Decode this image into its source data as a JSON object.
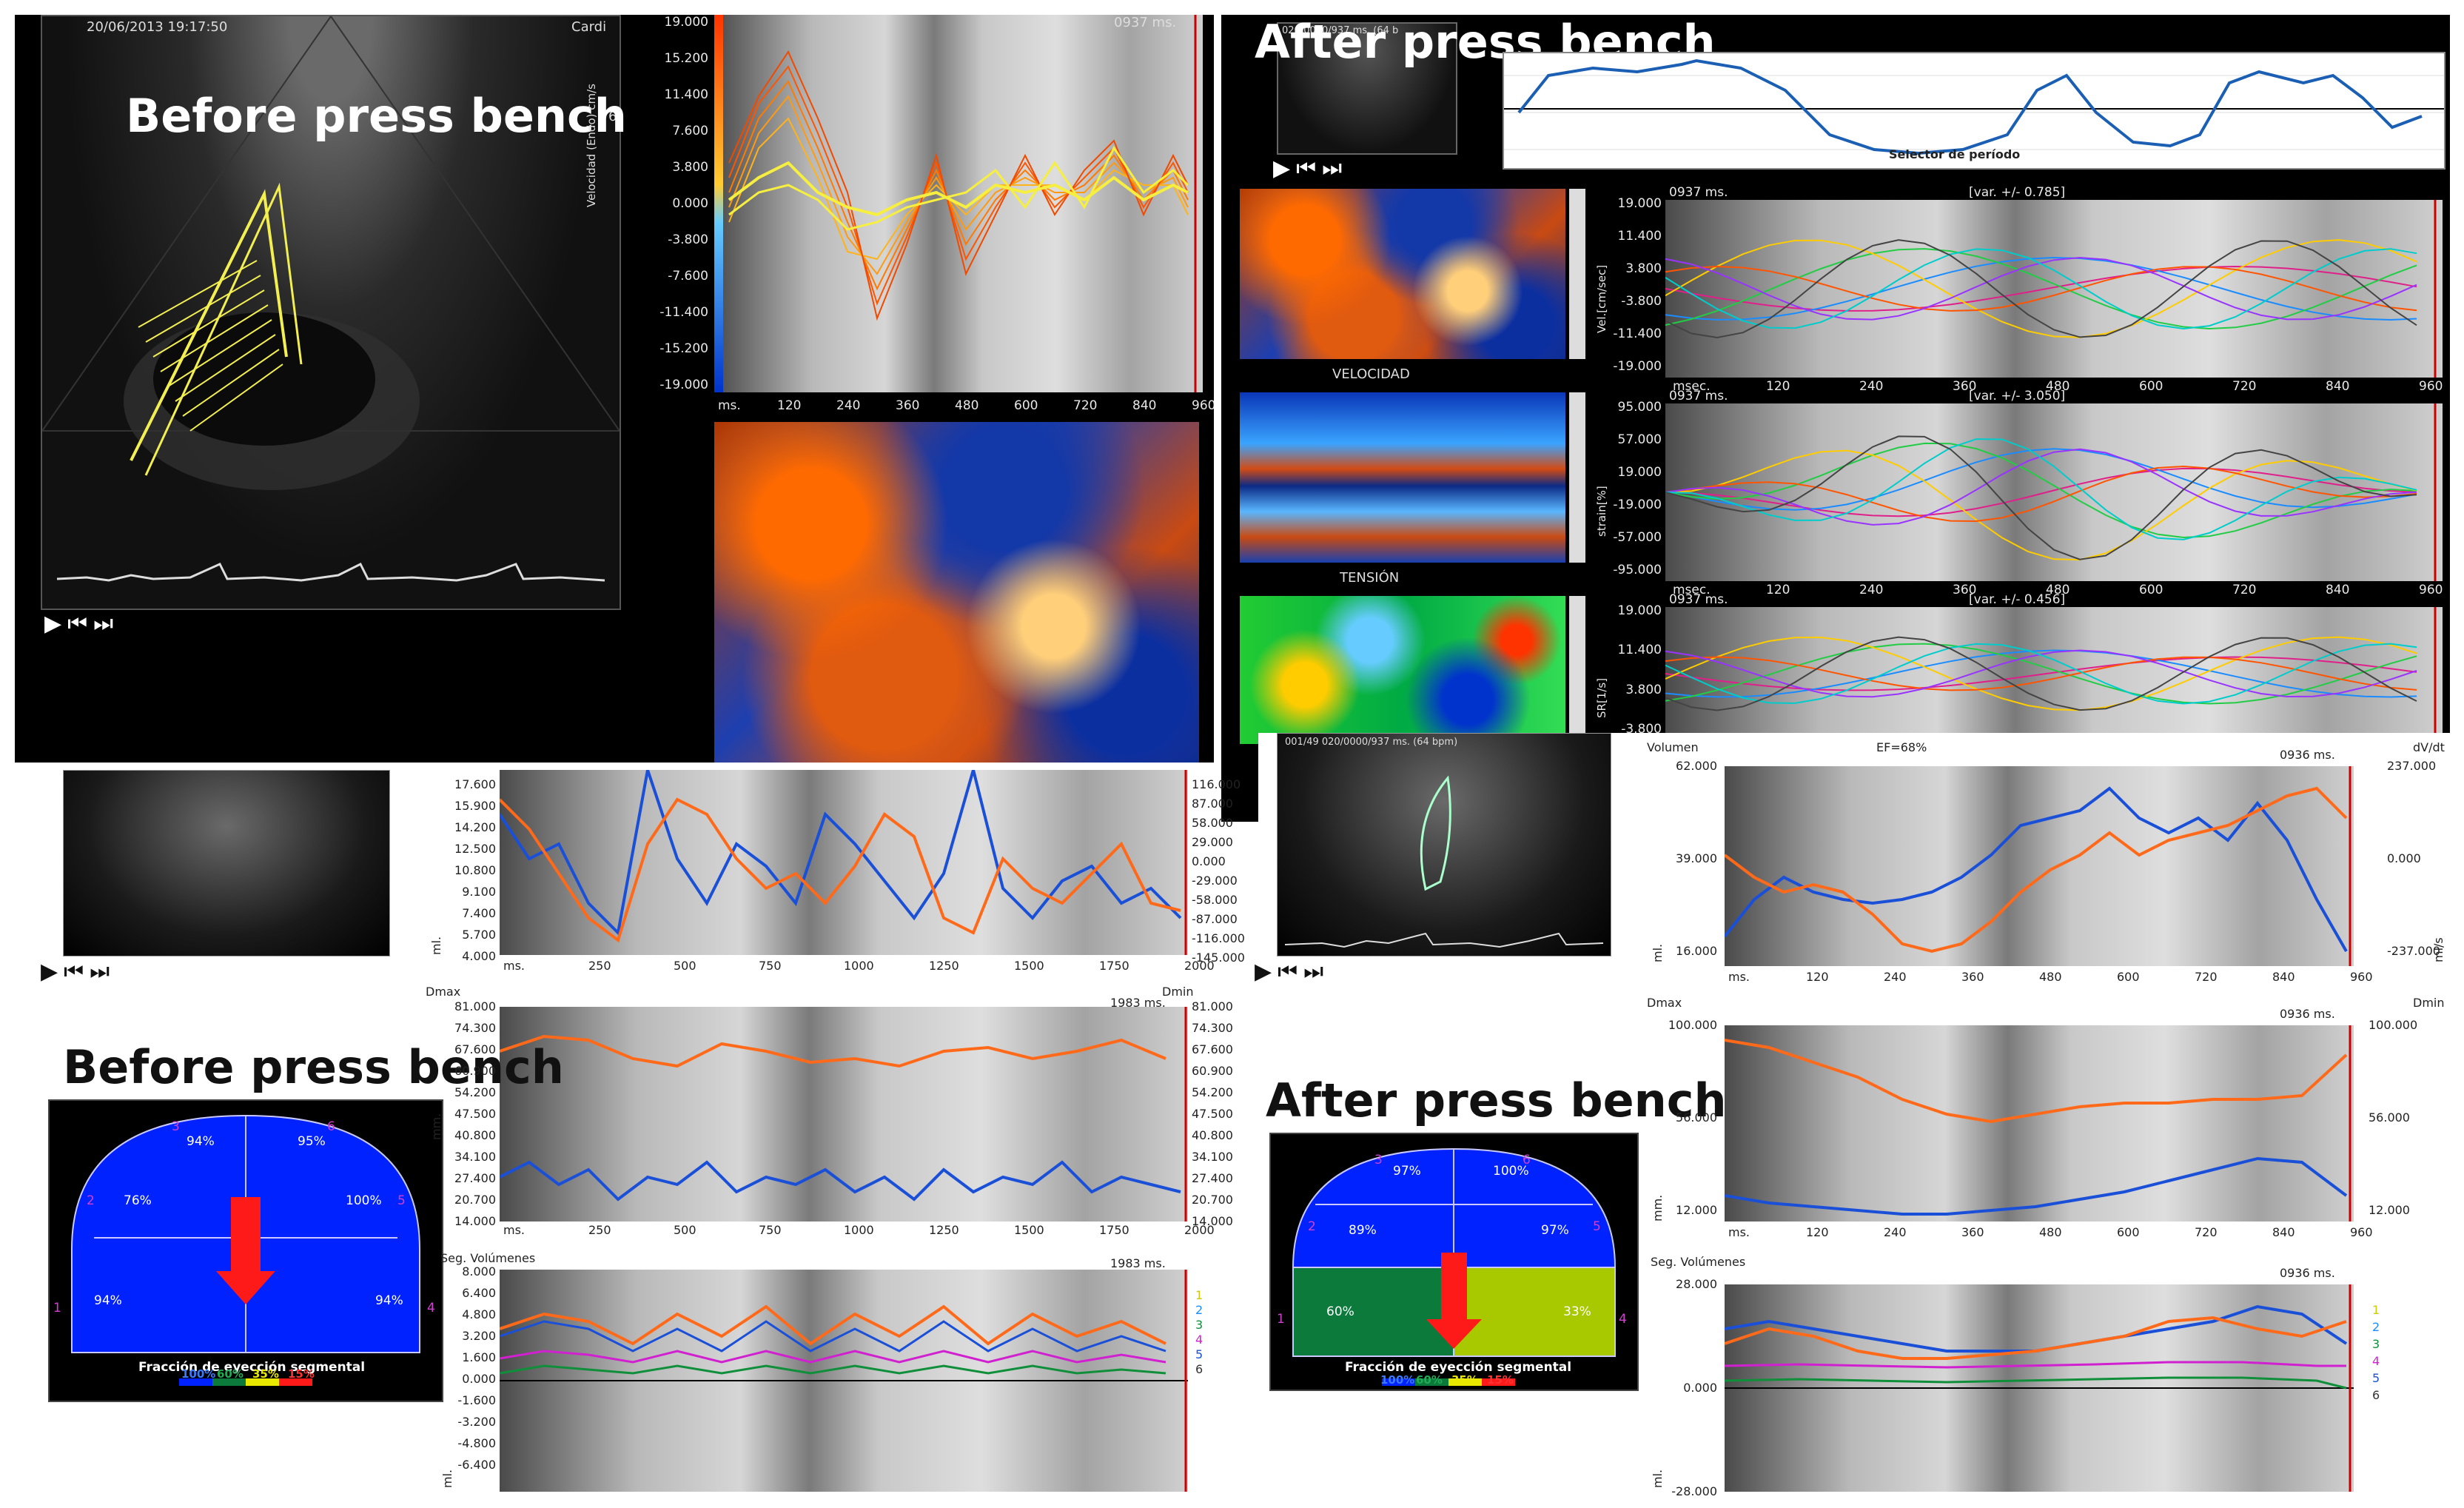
{
  "titles": {
    "before_top": "Before press bench",
    "after_top": "After press bench",
    "before_bottom": "Before press bench",
    "after_bottom": "After press bench"
  },
  "top_left": {
    "timestamp": "20/06/2013 19:17:50",
    "cardio": "Cardi",
    "side_mark": "6",
    "velocity_plot": {
      "header": "0937 ms.",
      "ylabel": "Velocidad (Endo) cm/s",
      "yticks": [
        "19.000",
        "15.200",
        "11.400",
        "7.600",
        "3.800",
        "0.000",
        "-3.800",
        "-7.600",
        "-11.400",
        "-15.200",
        "-19.000"
      ],
      "xticks": [
        "ms.",
        "120",
        "240",
        "360",
        "480",
        "600",
        "720",
        "840",
        "960"
      ]
    }
  },
  "top_right": {
    "thumb_header": "020/0000/937 ms. (64 b",
    "selector_label": "Selector de período",
    "map_labels": [
      "VELOCIDAD",
      "TENSIÓN"
    ],
    "plots": [
      {
        "header_left": "0937 ms.",
        "header_right": "[var. +/- 0.785]",
        "ylabel": "Vel.[cm/sec]",
        "yticks": [
          "19.000",
          "11.400",
          "3.800",
          "-3.800",
          "-11.400",
          "-19.000"
        ],
        "xticks": [
          "msec.",
          "120",
          "240",
          "360",
          "480",
          "600",
          "720",
          "840",
          "960"
        ]
      },
      {
        "header_left": "0937 ms.",
        "header_right": "[var. +/- 3.050]",
        "ylabel": "strain[%]",
        "yticks": [
          "95.000",
          "57.000",
          "19.000",
          "-19.000",
          "-57.000",
          "-95.000"
        ],
        "xticks": [
          "msec.",
          "120",
          "240",
          "360",
          "480",
          "600",
          "720",
          "840",
          "960"
        ]
      },
      {
        "header_left": "0937 ms.",
        "header_right": "[var. +/- 0.456]",
        "ylabel": "SR[1/s]",
        "yticks": [
          "19.000",
          "11.400",
          "3.800",
          "-3.800"
        ],
        "xticks": []
      }
    ]
  },
  "bottom_left": {
    "vol_plot": {
      "ylabel": "ml.",
      "yticks_left": [
        "17.600",
        "15.900",
        "14.200",
        "12.500",
        "10.800",
        "9.100",
        "7.400",
        "5.700",
        "4.000"
      ],
      "yticks_right": [
        "116.000",
        "87.000",
        "58.000",
        "29.000",
        "0.000",
        "-29.000",
        "-58.000",
        "-87.000",
        "-116.000",
        "-145.000"
      ],
      "xticks": [
        "ms.",
        "250",
        "500",
        "750",
        "1000",
        "1250",
        "1500",
        "1750",
        "2000"
      ]
    },
    "dim_plot": {
      "label_left": "Dmax",
      "label_right": "Dmin",
      "header": "1983 ms.",
      "ylabel": "mm.",
      "yticks": [
        "81.000",
        "74.300",
        "67.600",
        "60.900",
        "54.200",
        "47.500",
        "40.800",
        "34.100",
        "27.400",
        "20.700",
        "14.000"
      ],
      "xticks": [
        "ms.",
        "250",
        "500",
        "750",
        "1000",
        "1250",
        "1500",
        "1750",
        "2000"
      ]
    },
    "seg_plot": {
      "label": "Seg. Volúmenes",
      "header": "1983 ms.",
      "ylabel": "ml.",
      "yticks": [
        "8.000",
        "6.400",
        "4.800",
        "3.200",
        "1.600",
        "0.000",
        "-1.600",
        "-3.200",
        "-4.800",
        "-6.400"
      ],
      "seg_ids": [
        "1",
        "2",
        "3",
        "4",
        "5",
        "6"
      ]
    },
    "bullseye": {
      "title": "Fracción de eyección segmental",
      "legend": [
        "100%",
        "60%",
        "35%",
        "15%"
      ],
      "segments": [
        {
          "num": "3",
          "value": "94%"
        },
        {
          "num": "6",
          "value": "95%"
        },
        {
          "num": "2",
          "value": "76%"
        },
        {
          "num": "5",
          "value": "100%"
        },
        {
          "num": "1",
          "value": "94%"
        },
        {
          "num": "4",
          "value": "94%"
        }
      ]
    }
  },
  "bottom_right": {
    "thumb_header": "001/49 020/0000/937 ms. (64 bpm)",
    "vol_plot": {
      "label_left": "Volumen",
      "ef": "EF=68%",
      "header": "0936 ms.",
      "label_right": "dV/dt",
      "ylabel": "ml.",
      "ylabel_right": "ml/s",
      "yticks_left": [
        "62.000",
        "39.000",
        "16.000"
      ],
      "yticks_right": [
        "237.000",
        "0.000",
        "-237.000"
      ],
      "xticks": [
        "ms.",
        "120",
        "240",
        "360",
        "480",
        "600",
        "720",
        "840",
        "960"
      ]
    },
    "dim_plot": {
      "label_left": "Dmax",
      "label_right": "Dmin",
      "header": "0936 ms.",
      "ylabel": "mm.",
      "yticks_left": [
        "100.000",
        "56.000",
        "12.000"
      ],
      "yticks_right": [
        "100.000",
        "56.000",
        "12.000"
      ],
      "xticks": [
        "ms.",
        "120",
        "240",
        "360",
        "480",
        "600",
        "720",
        "840",
        "960"
      ]
    },
    "seg_plot": {
      "label": "Seg. Volúmenes",
      "header": "0936 ms.",
      "ylabel": "ml.",
      "yticks": [
        "28.000",
        "0.000",
        "-28.000"
      ],
      "seg_ids": [
        "1",
        "2",
        "3",
        "4",
        "5",
        "6"
      ]
    },
    "bullseye": {
      "title": "Fracción de eyección segmental",
      "legend": [
        "100%",
        "60%",
        "35%",
        "15%"
      ],
      "segments": [
        {
          "num": "3",
          "value": "97%"
        },
        {
          "num": "6",
          "value": "100%"
        },
        {
          "num": "2",
          "value": "89%"
        },
        {
          "num": "5",
          "value": "97%"
        },
        {
          "num": "1",
          "value": "60%"
        },
        {
          "num": "4",
          "value": "33%"
        }
      ]
    }
  },
  "colors": {
    "orange": "#ff6a1a",
    "blue": "#1a4fd8",
    "bullseye_blue": "#0022ff",
    "bullseye_green": "#0b7a3a",
    "bullseye_lime": "#a8c800",
    "arrow_red": "#ff1a1a"
  },
  "controls": "▶⏮⏭"
}
